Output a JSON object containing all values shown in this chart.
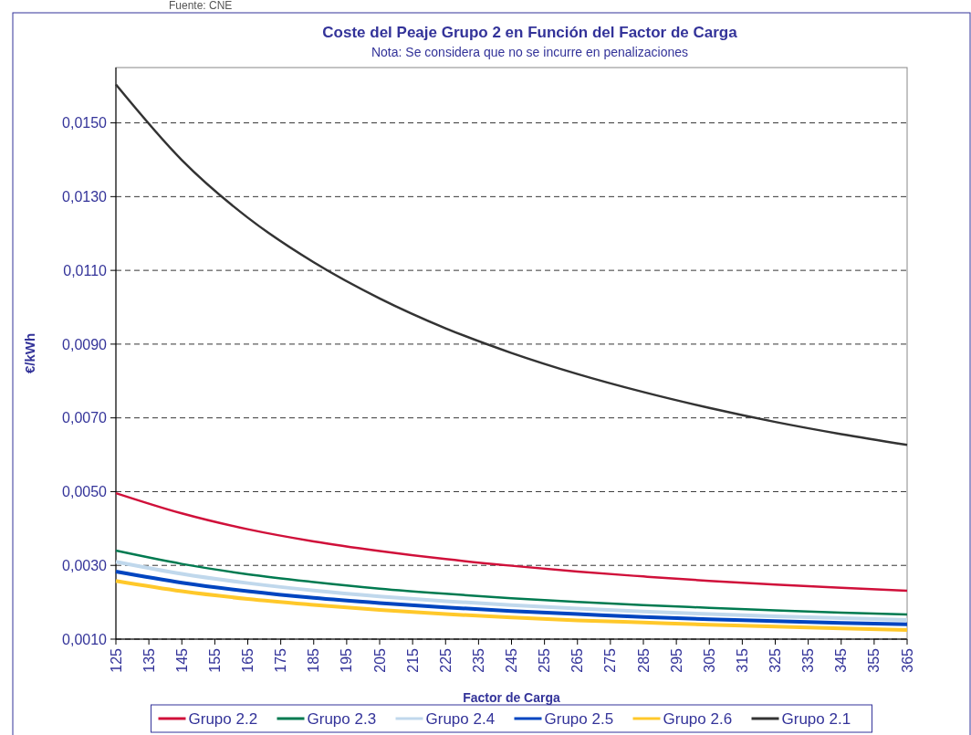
{
  "chart_data": {
    "type": "line",
    "title": "Coste del Peaje Grupo 2 en Función del Factor de Carga",
    "subtitle": "Nota: Se considera que no se incurre en penalizaciones",
    "xlabel": "Factor de Carga",
    "ylabel": "€/kWh",
    "annotations": [
      "Fuente: CNE"
    ],
    "x": [
      125,
      145,
      165,
      185,
      205,
      225,
      245,
      265,
      285,
      305,
      325,
      345,
      365
    ],
    "series": [
      {
        "name": "Grupo 2.2",
        "color": "#d0103a",
        "values": [
          0.00496,
          0.00441,
          0.00398,
          0.00365,
          0.00339,
          0.00317,
          0.00299,
          0.00283,
          0.0027,
          0.00258,
          0.00248,
          0.00239,
          0.00231
        ]
      },
      {
        "name": "Grupo 2.3",
        "color": "#007a50",
        "values": [
          0.0034,
          0.00304,
          0.00276,
          0.00255,
          0.00237,
          0.00223,
          0.00211,
          0.00201,
          0.00192,
          0.00185,
          0.00178,
          0.00172,
          0.00167
        ]
      },
      {
        "name": "Grupo 2.4",
        "color": "#c0d8ec",
        "values": [
          0.0031,
          0.00277,
          0.00252,
          0.00232,
          0.00216,
          0.00203,
          0.00192,
          0.00183,
          0.00175,
          0.00168,
          0.00162,
          0.00157,
          0.00152
        ]
      },
      {
        "name": "Grupo 2.5",
        "color": "#0045c0",
        "values": [
          0.00283,
          0.00253,
          0.0023,
          0.00212,
          0.00198,
          0.00186,
          0.00176,
          0.00168,
          0.0016,
          0.00154,
          0.00149,
          0.00144,
          0.0014
        ]
      },
      {
        "name": "Grupo 2.6",
        "color": "#ffc82a",
        "values": [
          0.00258,
          0.0023,
          0.00209,
          0.00193,
          0.00179,
          0.00168,
          0.00159,
          0.00151,
          0.00145,
          0.00139,
          0.00134,
          0.00129,
          0.00125
        ]
      },
      {
        "name": "Grupo 2.1",
        "color": "#333333",
        "values": [
          0.01604,
          0.01399,
          0.01243,
          0.01122,
          0.01024,
          0.00943,
          0.00876,
          0.00819,
          0.0077,
          0.00727,
          0.00689,
          0.00656,
          0.00627
        ]
      }
    ],
    "xlim": [
      125,
      365
    ],
    "xticks": [
      125,
      135,
      145,
      155,
      165,
      175,
      185,
      195,
      205,
      215,
      225,
      235,
      245,
      255,
      265,
      275,
      285,
      295,
      305,
      315,
      325,
      335,
      345,
      355,
      365
    ],
    "ylim": [
      0.001,
      0.0165
    ],
    "yticks": [
      {
        "value": 0.001,
        "label": "0,0010"
      },
      {
        "value": 0.003,
        "label": "0,0030"
      },
      {
        "value": 0.005,
        "label": "0,0050"
      },
      {
        "value": 0.007,
        "label": "0,0070"
      },
      {
        "value": 0.009,
        "label": "0,0090"
      },
      {
        "value": 0.011,
        "label": "0,0110"
      },
      {
        "value": 0.013,
        "label": "0,0130"
      },
      {
        "value": 0.015,
        "label": "0,0150"
      }
    ],
    "grid": "y",
    "legend": "bottom",
    "marker": "none",
    "line_style": "solid"
  }
}
